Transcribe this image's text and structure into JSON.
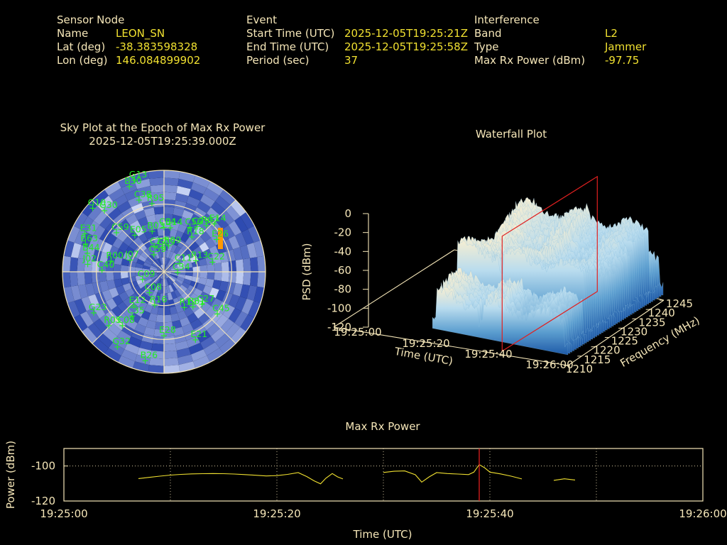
{
  "header": {
    "sensor": {
      "heading": "Sensor Node",
      "rows": [
        {
          "label": "Name",
          "value": "LEON_SN"
        },
        {
          "label": "Lat (deg)",
          "value": "-38.383598328"
        },
        {
          "label": "Lon (deg)",
          "value": "146.084899902"
        }
      ]
    },
    "event": {
      "heading": "Event",
      "rows": [
        {
          "label": "Start Time (UTC)",
          "value": "2025-12-05T19:25:21Z"
        },
        {
          "label": "End Time (UTC)",
          "value": "2025-12-05T19:25:58Z"
        },
        {
          "label": "Period (sec)",
          "value": "37"
        }
      ]
    },
    "interference": {
      "heading": "Interference",
      "rows": [
        {
          "label": "Band",
          "value": "L2"
        },
        {
          "label": "Type",
          "value": "Jammer"
        },
        {
          "label": "Max Rx Power (dBm)",
          "value": "-97.75"
        }
      ]
    }
  },
  "chart_data": [
    {
      "type": "scatter",
      "subtype": "polar-sky-plot",
      "title": "Sky Plot at the Epoch of Max Rx Power",
      "subtitle": "2025-12-05T19:25:39.000Z",
      "colors": {
        "sat": "#22ee22",
        "heat_low": "#2c49b0",
        "heat_high": "#dfe8ff",
        "jammer": "#ff9900"
      },
      "satellites": [
        {
          "id": "G13",
          "az": 342,
          "el": 4
        },
        {
          "id": "B30",
          "az": 338,
          "el": 8
        },
        {
          "id": "G10",
          "az": 312,
          "el": 5
        },
        {
          "id": "G30",
          "az": 316,
          "el": 14
        },
        {
          "id": "C38",
          "az": 341,
          "el": 22
        },
        {
          "id": "R95",
          "az": 350,
          "el": 28
        },
        {
          "id": "C59",
          "az": 310,
          "el": 35
        },
        {
          "id": "E05",
          "az": 322,
          "el": 48
        },
        {
          "id": "B03",
          "az": 344,
          "el": 52
        },
        {
          "id": "C04",
          "az": 0,
          "el": 50
        },
        {
          "id": "B14",
          "az": 8,
          "el": 50
        },
        {
          "id": "C56",
          "az": 30,
          "el": 44
        },
        {
          "id": "C23",
          "az": 36,
          "el": 40
        },
        {
          "id": "R07",
          "az": 42,
          "el": 34
        },
        {
          "id": "E14",
          "az": 46,
          "el": 28
        },
        {
          "id": "E26",
          "az": 58,
          "el": 35
        },
        {
          "id": "R18",
          "az": 38,
          "el": 50
        },
        {
          "id": "R13",
          "az": 70,
          "el": 60
        },
        {
          "id": "C22",
          "az": 78,
          "el": 46
        },
        {
          "id": "C11",
          "az": 60,
          "el": 74
        },
        {
          "id": "C34",
          "az": 90,
          "el": 78
        },
        {
          "id": "R09",
          "az": 10,
          "el": 66
        },
        {
          "id": "C27",
          "az": 340,
          "el": 66
        },
        {
          "id": "G29",
          "az": 356,
          "el": 68
        },
        {
          "id": "C59",
          "az": 330,
          "el": 72
        },
        {
          "id": "J07",
          "az": 290,
          "el": 58
        },
        {
          "id": "R00",
          "az": 282,
          "el": 42
        },
        {
          "id": "C40",
          "az": 272,
          "el": 35
        },
        {
          "id": "J02",
          "az": 276,
          "el": 22
        },
        {
          "id": "B44",
          "az": 284,
          "el": 20
        },
        {
          "id": "B63",
          "az": 290,
          "el": 16
        },
        {
          "id": "E31",
          "az": 296,
          "el": 12
        },
        {
          "id": "C09",
          "az": 252,
          "el": 70
        },
        {
          "id": "C08",
          "az": 216,
          "el": 68
        },
        {
          "id": "E12",
          "az": 222,
          "el": 50
        },
        {
          "id": "C35",
          "az": 216,
          "el": 42
        },
        {
          "id": "R16",
          "az": 196,
          "el": 60
        },
        {
          "id": "G23",
          "az": 240,
          "el": 18
        },
        {
          "id": "R05",
          "az": 226,
          "el": 22
        },
        {
          "id": "C08",
          "az": 218,
          "el": 30
        },
        {
          "id": "G32",
          "az": 212,
          "el": 12
        },
        {
          "id": "B26",
          "az": 192,
          "el": 10
        },
        {
          "id": "E28",
          "az": 180,
          "el": 34
        },
        {
          "id": "R19",
          "az": 150,
          "el": 54
        },
        {
          "id": "B31",
          "az": 140,
          "el": 50
        },
        {
          "id": "C27",
          "az": 130,
          "el": 46
        },
        {
          "id": "C45",
          "az": 128,
          "el": 30
        },
        {
          "id": "E21",
          "az": 155,
          "el": 24
        }
      ]
    },
    {
      "type": "heatmap",
      "subtype": "3d-surface-waterfall",
      "title": "Waterfall Plot",
      "zlabel": "PSD (dBm)",
      "xlabel": "Time (UTC)",
      "ylabel": "Frequency (MHz)",
      "z_ticks": [
        0,
        -20,
        -40,
        -60,
        -80,
        -100,
        -120
      ],
      "zlim": [
        -120,
        0
      ],
      "x_ticks": [
        "19:25:00",
        "19:25:20",
        "19:25:40",
        "19:26:00"
      ],
      "y_ticks": [
        1210,
        1215,
        1220,
        1225,
        1230,
        1235,
        1240,
        1245
      ],
      "ylim": [
        1210,
        1245
      ],
      "marker_time": "19:25:39",
      "colors": {
        "marker": "#e02020",
        "surface_low": "#1e5aa8",
        "surface_high": "#f6eed2"
      }
    },
    {
      "type": "line",
      "title": "Max Rx Power",
      "xlabel": "Time (UTC)",
      "ylabel": "Power (dBm)",
      "x_ticks": [
        "19:25:00",
        "19:25:20",
        "19:25:40",
        "19:26:00"
      ],
      "y_ticks": [
        -100,
        -120
      ],
      "xlim": [
        0,
        60
      ],
      "ylim": [
        -120,
        -90
      ],
      "marker_time_sec": 39,
      "colors": {
        "line": "#f0e030",
        "marker": "#e02020",
        "frame": "#f5e6b8"
      },
      "series": [
        {
          "segments": [
            [
              [
                7,
                -107.2
              ],
              [
                8,
                -106.5
              ],
              [
                9,
                -105.8
              ],
              [
                10,
                -105.2
              ],
              [
                11,
                -104.8
              ],
              [
                12,
                -104.5
              ],
              [
                13,
                -104.4
              ],
              [
                14,
                -104.3
              ],
              [
                15,
                -104.4
              ],
              [
                16,
                -104.6
              ],
              [
                17,
                -104.9
              ],
              [
                18,
                -105.3
              ],
              [
                19,
                -105.7
              ],
              [
                20,
                -105.5
              ],
              [
                21,
                -104.8
              ],
              [
                22,
                -103.8
              ],
              [
                22.8,
                -106
              ],
              [
                23.5,
                -108.5
              ],
              [
                24.1,
                -110.2
              ],
              [
                24.6,
                -107
              ],
              [
                25.2,
                -104.3
              ],
              [
                25.7,
                -106.2
              ],
              [
                26.2,
                -107.4
              ]
            ],
            [
              [
                30,
                -103.7
              ],
              [
                31,
                -103
              ],
              [
                32,
                -102.8
              ],
              [
                33,
                -105
              ],
              [
                33.6,
                -109.2
              ],
              [
                34.3,
                -106.2
              ],
              [
                35,
                -103.8
              ],
              [
                36,
                -104.3
              ],
              [
                37,
                -104.6
              ],
              [
                38,
                -104.9
              ],
              [
                38.5,
                -103.5
              ],
              [
                39,
                -99.2
              ],
              [
                39.5,
                -101
              ],
              [
                40,
                -103.5
              ],
              [
                41,
                -104.5
              ],
              [
                42,
                -105.8
              ],
              [
                43,
                -107.4
              ]
            ],
            [
              [
                46,
                -108.2
              ],
              [
                47,
                -107.3
              ],
              [
                48,
                -108
              ]
            ]
          ]
        }
      ]
    }
  ]
}
